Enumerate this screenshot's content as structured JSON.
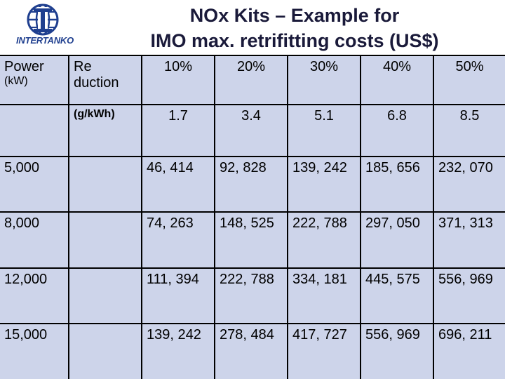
{
  "header": {
    "logo_label": "INTERTANKO",
    "title_line1": "NOx Kits – Example for",
    "title_line2": "IMO max. retrifitting costs (US$)",
    "colors": {
      "logo_blue": "#1f3f8f",
      "table_bg": "#cdd4ea"
    }
  },
  "table": {
    "col1_header": "Power",
    "col1_unit": "(kW)",
    "col2_header_line1": "Re",
    "col2_header_line2": "duction",
    "col2_unit": "(g/kWh)",
    "percentages": [
      "10%",
      "20%",
      "30%",
      "40%",
      "50%"
    ],
    "reductions": [
      "1.7",
      "3.4",
      "5.1",
      "6.8",
      "8.5"
    ],
    "rows": [
      {
        "power": "5,000",
        "values": [
          "46, 414",
          "92, 828",
          "139, 242",
          "185, 656",
          "232, 070"
        ]
      },
      {
        "power": "8,000",
        "values": [
          "74, 263",
          "148, 525",
          "222, 788",
          "297, 050",
          "371, 313"
        ]
      },
      {
        "power": "12,000",
        "values": [
          "111, 394",
          "222, 788",
          "334, 181",
          "445, 575",
          "556, 969"
        ]
      },
      {
        "power": "15,000",
        "values": [
          "139, 242",
          "278, 484",
          "417, 727",
          "556, 969",
          "696, 211"
        ]
      }
    ]
  }
}
